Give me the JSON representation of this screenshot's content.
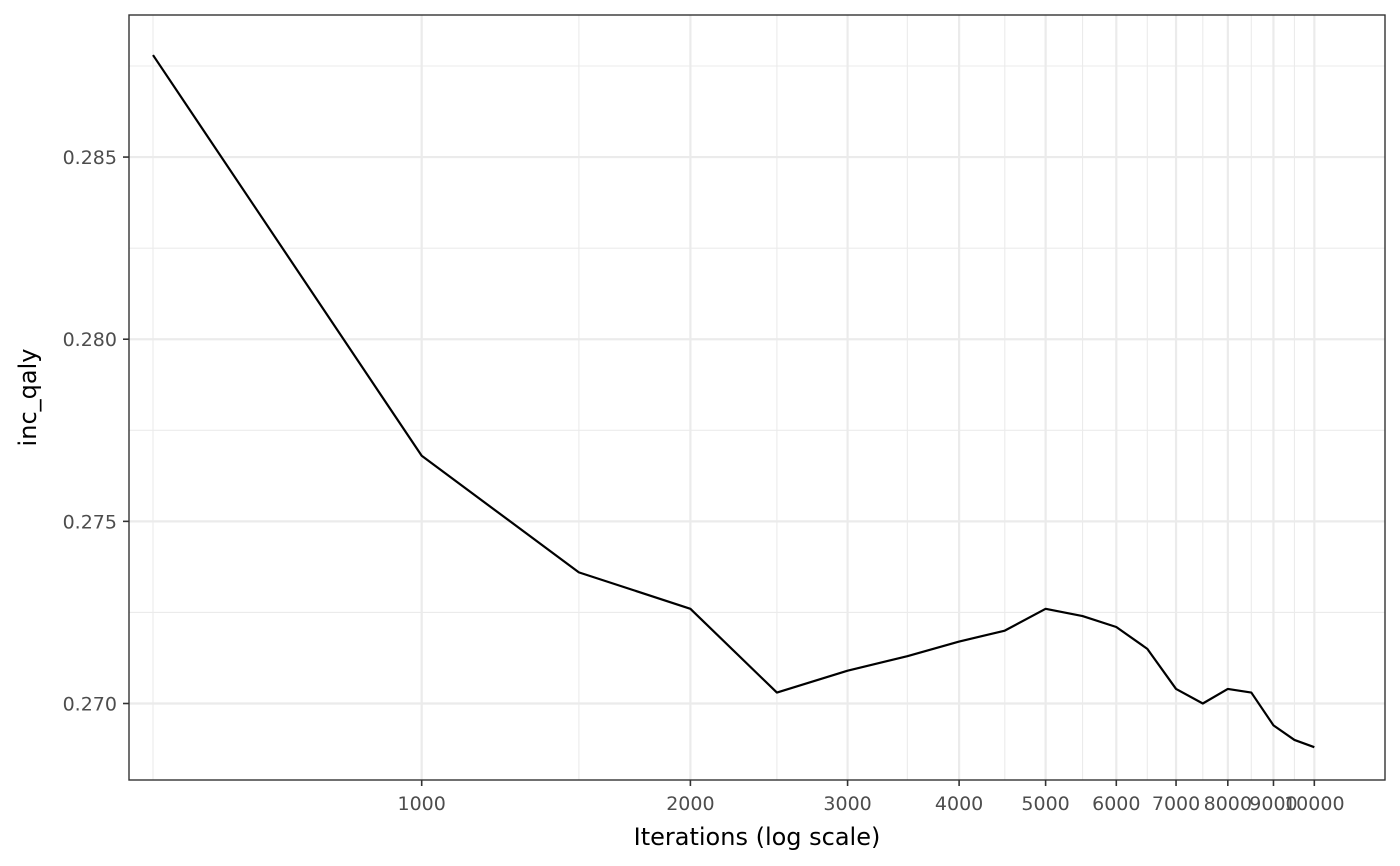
{
  "chart_data": {
    "type": "line",
    "title": "",
    "xlabel": "Iterations (log scale)",
    "ylabel": "inc_qaly",
    "x_scale": "log",
    "grid": true,
    "xlim": [
      470,
      12000
    ],
    "ylim": [
      0.2679,
      0.2889
    ],
    "x_ticks": [
      1000,
      2000,
      3000,
      4000,
      5000,
      6000,
      7000,
      8000,
      9000,
      10000
    ],
    "x_tick_labels": [
      "1000",
      "2000",
      "3000",
      "4000",
      "5000",
      "6000",
      "7000",
      "8000",
      "9000",
      "10000"
    ],
    "x_minor_ticks": [
      500,
      1500,
      2500,
      3500,
      4500,
      5500,
      6500,
      7500,
      8500,
      9500
    ],
    "y_ticks": [
      0.27,
      0.275,
      0.28,
      0.285
    ],
    "y_tick_labels": [
      "0.270",
      "0.275",
      "0.280",
      "0.285"
    ],
    "y_minor_ticks": [
      0.2675,
      0.2725,
      0.2775,
      0.2825,
      0.2875
    ],
    "series": [
      {
        "color": "#000000",
        "x": [
          500,
          1000,
          1500,
          2000,
          2500,
          3000,
          3500,
          4000,
          4500,
          5000,
          5500,
          6000,
          6500,
          7000,
          7500,
          8000,
          8500,
          9000,
          9500,
          10000
        ],
        "y": [
          0.2878,
          0.2768,
          0.2736,
          0.2726,
          0.2703,
          0.2709,
          0.2713,
          0.2717,
          0.272,
          0.2726,
          0.2724,
          0.2721,
          0.2715,
          0.2704,
          0.27,
          0.2704,
          0.2703,
          0.2694,
          0.269,
          0.2688
        ]
      }
    ]
  }
}
